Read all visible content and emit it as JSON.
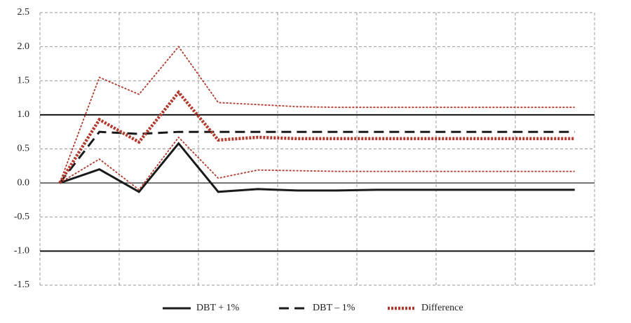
{
  "chart_data": {
    "type": "line",
    "x": [
      0,
      1,
      2,
      3,
      4,
      5,
      6,
      7,
      8,
      9,
      10,
      11,
      12,
      13
    ],
    "xlim": [
      -0.5,
      13.5
    ],
    "xticks": [
      -0.5,
      1.5,
      3.5,
      5.5,
      7.5,
      9.5,
      11.5,
      13.5
    ],
    "ylim": [
      -1.5,
      2.5
    ],
    "yticks": [
      {
        "value": -1.5,
        "label": "-1.5"
      },
      {
        "value": -1,
        "label": "-1.0"
      },
      -0.5,
      {
        "value": 0,
        "label": "0.0"
      },
      0.5,
      {
        "value": 1,
        "label": "1.0"
      },
      1.5,
      {
        "value": 2,
        "label": "2.0"
      },
      2.5
    ],
    "reference_lines": [
      -1,
      1
    ],
    "grid": true,
    "legend": "bottom",
    "series": [
      {
        "name": "DBT + 1%",
        "color": "#1a1a1a",
        "dash": "solid",
        "width": 3,
        "values": [
          0,
          0.2,
          -0.13,
          0.58,
          -0.13,
          -0.09,
          -0.11,
          -0.11,
          -0.1,
          -0.1,
          -0.1,
          -0.1,
          -0.1,
          -0.1
        ]
      },
      {
        "name": "DBT – 1%",
        "color": "#1a1a1a",
        "dash": "dashed",
        "width": 3,
        "values": [
          0,
          0.75,
          0.72,
          0.75,
          0.75,
          0.75,
          0.75,
          0.75,
          0.75,
          0.75,
          0.75,
          0.75,
          0.75,
          0.75
        ]
      },
      {
        "name": "Difference",
        "color": "#b03a2e",
        "dash": "dotted",
        "width": 4.5,
        "values": [
          0,
          0.93,
          0.6,
          1.33,
          0.63,
          0.67,
          0.65,
          0.65,
          0.65,
          0.65,
          0.65,
          0.65,
          0.65,
          0.65
        ]
      },
      {
        "color": "#b03a2e",
        "dash": "dotted",
        "width": 1.8,
        "values": [
          0,
          1.55,
          1.3,
          2.0,
          1.18,
          1.15,
          1.12,
          1.11,
          1.11,
          1.11,
          1.11,
          1.11,
          1.11,
          1.11
        ]
      },
      {
        "color": "#b03a2e",
        "dash": "dotted",
        "width": 1.8,
        "values": [
          0,
          0.35,
          -0.1,
          0.67,
          0.07,
          0.19,
          0.18,
          0.17,
          0.17,
          0.17,
          0.17,
          0.17,
          0.17,
          0.17
        ]
      }
    ]
  }
}
